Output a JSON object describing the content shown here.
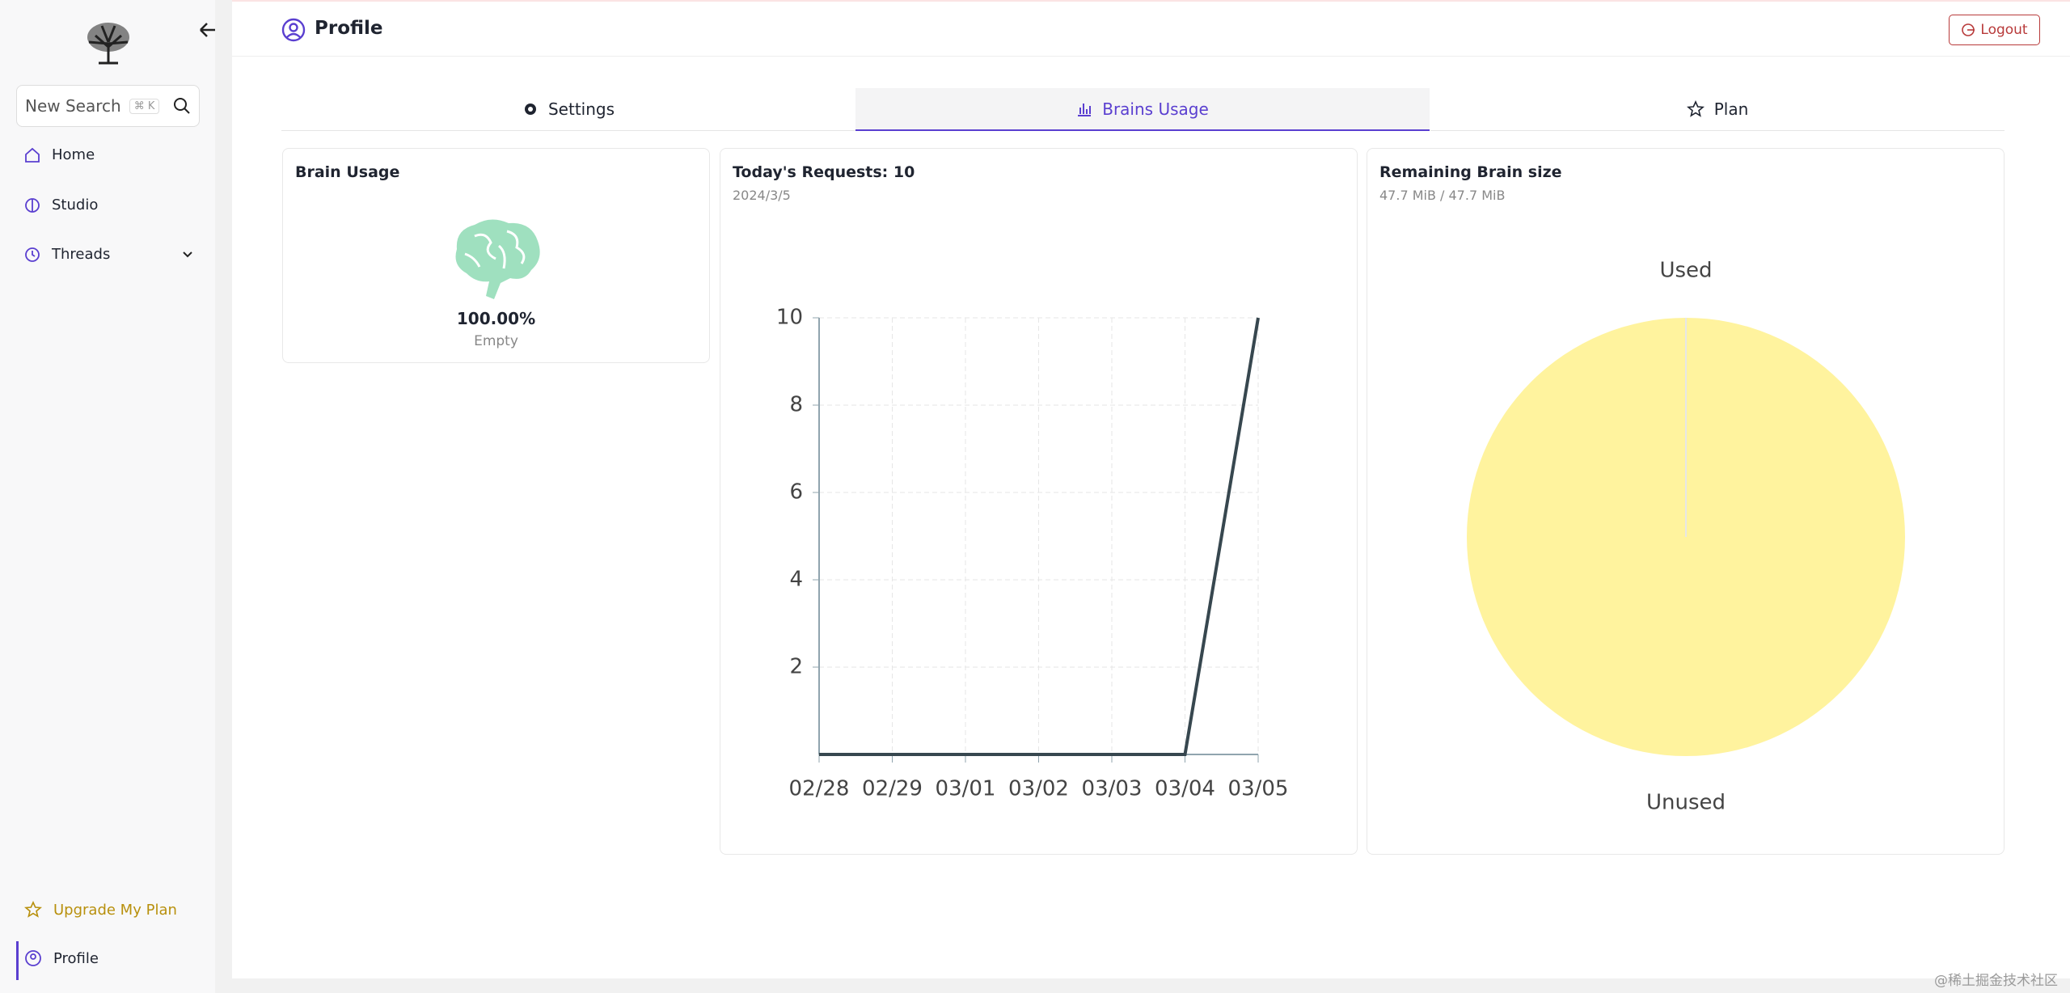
{
  "sidebar": {
    "search_placeholder": "New Search",
    "search_shortcut": "⌘ K",
    "nav": [
      "Home",
      "Studio",
      "Threads"
    ],
    "upgrade": "Upgrade My Plan",
    "profile": "Profile"
  },
  "header": {
    "title": "Profile",
    "logout": "Logout"
  },
  "tabs": [
    "Settings",
    "Brains Usage",
    "Plan"
  ],
  "brain_usage": {
    "title": "Brain Usage",
    "percent": "100.00%",
    "status": "Empty"
  },
  "chart_data": [
    {
      "type": "line",
      "title": "Today's Requests: 10",
      "subtitle": "2024/3/5",
      "categories": [
        "02/28",
        "02/29",
        "03/01",
        "03/02",
        "03/03",
        "03/04",
        "03/05"
      ],
      "values": [
        0,
        0,
        0,
        0,
        0,
        0,
        10
      ],
      "color": "#37474f",
      "ylim": [
        0,
        10
      ],
      "yticks": [
        2,
        4,
        6,
        8,
        10
      ],
      "grid": true
    },
    {
      "type": "pie",
      "title": "Remaining Brain size",
      "subtitle": "47.7 MiB / 47.7 MiB",
      "categories": [
        "Used",
        "Unused"
      ],
      "values": [
        0,
        47.7
      ],
      "colors": [
        "#e6e6e6",
        "#fff39e"
      ]
    }
  ],
  "watermark": "@稀土掘金技术社区"
}
